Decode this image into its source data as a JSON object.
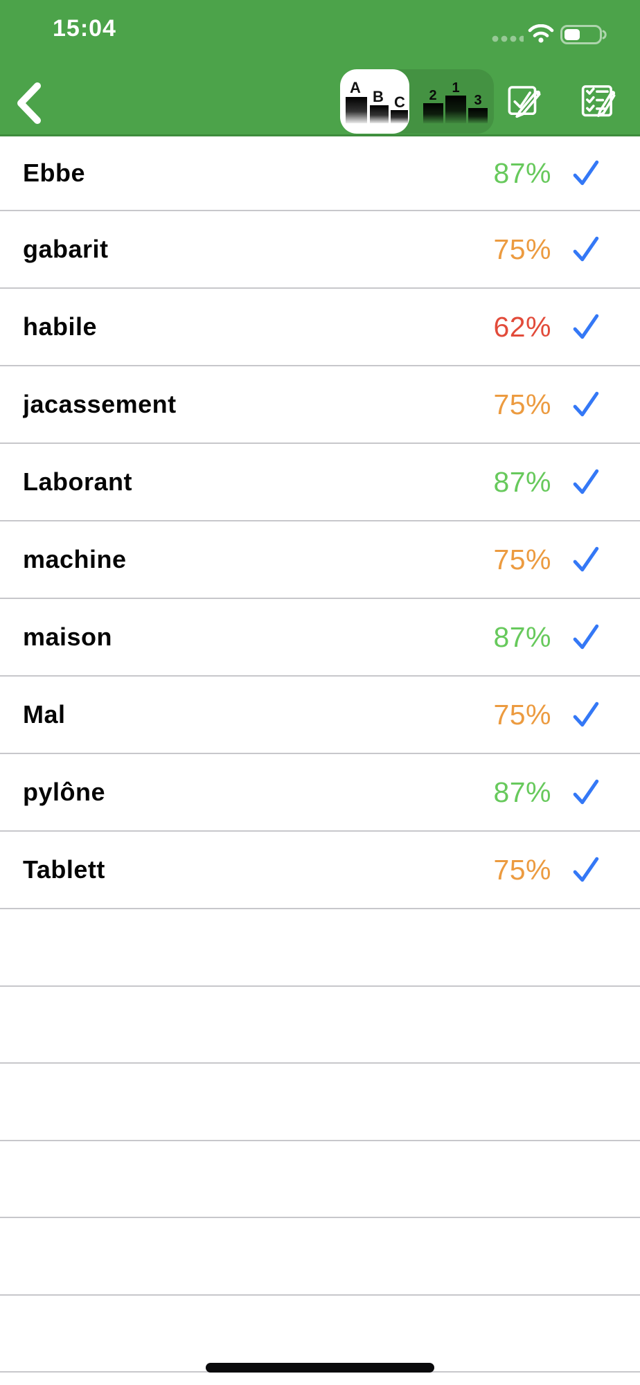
{
  "status_bar": {
    "time": "15:04",
    "cellular_icon": "no-signal-dots",
    "wifi_icon": "wifi",
    "battery_icon": "battery-40-percent"
  },
  "nav": {
    "back_icon": "chevron-left",
    "segmented_control": {
      "selected_index": 0,
      "segments": [
        {
          "name": "sort-alphabetical",
          "labels": [
            "A",
            "B",
            "C"
          ]
        },
        {
          "name": "sort-ranking",
          "labels": [
            "2",
            "1",
            "3"
          ]
        }
      ]
    },
    "buttons": [
      {
        "name": "edit-check",
        "icon": "square-check-pencil"
      },
      {
        "name": "edit-checklist",
        "icon": "checklist-pencil"
      }
    ]
  },
  "list": {
    "items": [
      {
        "word": "Ebbe",
        "score": "87%",
        "level": "good"
      },
      {
        "word": "gabarit",
        "score": "75%",
        "level": "medium"
      },
      {
        "word": "habile",
        "score": "62%",
        "level": "poor"
      },
      {
        "word": "jacassement",
        "score": "75%",
        "level": "medium"
      },
      {
        "word": "Laborant",
        "score": "87%",
        "level": "good"
      },
      {
        "word": "machine",
        "score": "75%",
        "level": "medium"
      },
      {
        "word": "maison",
        "score": "87%",
        "level": "good"
      },
      {
        "word": "Mal",
        "score": "75%",
        "level": "medium"
      },
      {
        "word": "pylône",
        "score": "87%",
        "level": "good"
      },
      {
        "word": "Tablett",
        "score": "75%",
        "level": "medium"
      }
    ],
    "empty_rows": 6
  },
  "colors": {
    "header_green": "#4CA34A",
    "header_border": "#3E8C3D",
    "score_good": "#67C95C",
    "score_medium": "#EC9B40",
    "score_poor": "#E24B3A",
    "check_blue": "#3478F6",
    "separator": "#C7C7CB"
  }
}
